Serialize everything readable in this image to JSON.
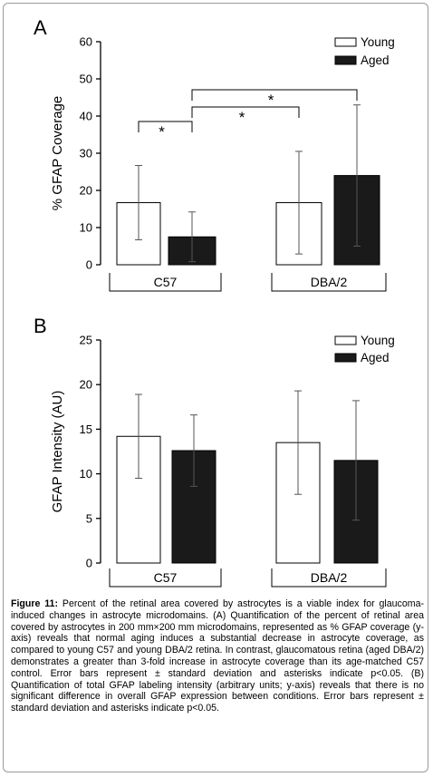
{
  "chart_data": [
    {
      "type": "bar",
      "panel_label": "A",
      "ylabel": "% GFAP Coverage",
      "ylim": [
        0,
        60
      ],
      "yticks": [
        "0",
        "10",
        "20",
        "30",
        "40",
        "50",
        "60"
      ],
      "groups": [
        "C57",
        "DBA/2"
      ],
      "series": [
        {
          "name": "Young",
          "values": [
            16.7,
            16.7
          ],
          "errors": [
            10,
            13.8
          ],
          "color": "#ffffff"
        },
        {
          "name": "Aged",
          "values": [
            7.5,
            24.0
          ],
          "errors": [
            6.7,
            19.0
          ],
          "color": "#1a1a1a"
        }
      ],
      "significance": [
        {
          "from": [
            0,
            0
          ],
          "to": [
            0,
            1
          ],
          "label": "*"
        },
        {
          "from": [
            0,
            1
          ],
          "to": [
            1,
            0
          ],
          "label": "*"
        },
        {
          "from": [
            0,
            1
          ],
          "to": [
            1,
            1
          ],
          "label": "*"
        }
      ],
      "legend_position": "top-right"
    },
    {
      "type": "bar",
      "panel_label": "B",
      "ylabel": "GFAP Intensity (AU)",
      "ylim": [
        0,
        25
      ],
      "yticks": [
        "0",
        "5",
        "10",
        "15",
        "20",
        "25"
      ],
      "groups": [
        "C57",
        "DBA/2"
      ],
      "series": [
        {
          "name": "Young",
          "values": [
            14.2,
            13.5
          ],
          "errors": [
            4.7,
            5.8
          ],
          "color": "#ffffff"
        },
        {
          "name": "Aged",
          "values": [
            12.6,
            11.5
          ],
          "errors": [
            4.0,
            6.7
          ],
          "color": "#1a1a1a"
        }
      ],
      "legend_position": "top-right"
    }
  ],
  "caption": {
    "label": "Figure 11:",
    "text": "Percent of the retinal area covered by astrocytes is a viable index for glaucoma-induced changes in astrocyte microdomains. (A) Quantification of the percent of retinal area covered by astrocytes in 200 mm×200 mm microdomains, represented as % GFAP coverage (y-axis) reveals that normal aging induces a substantial decrease in astrocyte coverage, as compared to young C57 and young DBA/2 retina. In contrast, glaucomatous retina (aged DBA/2) demonstrates a greater than 3-fold increase in astrocyte coverage than its age-matched C57 control. Error bars represent ± standard deviation and asterisks indicate p<0.05. (B) Quantification of total GFAP labeling intensity (arbitrary units; y-axis) reveals that there is no significant difference in overall GFAP expression between conditions. Error bars represent ± standard deviation and asterisks indicate p<0.05."
  }
}
